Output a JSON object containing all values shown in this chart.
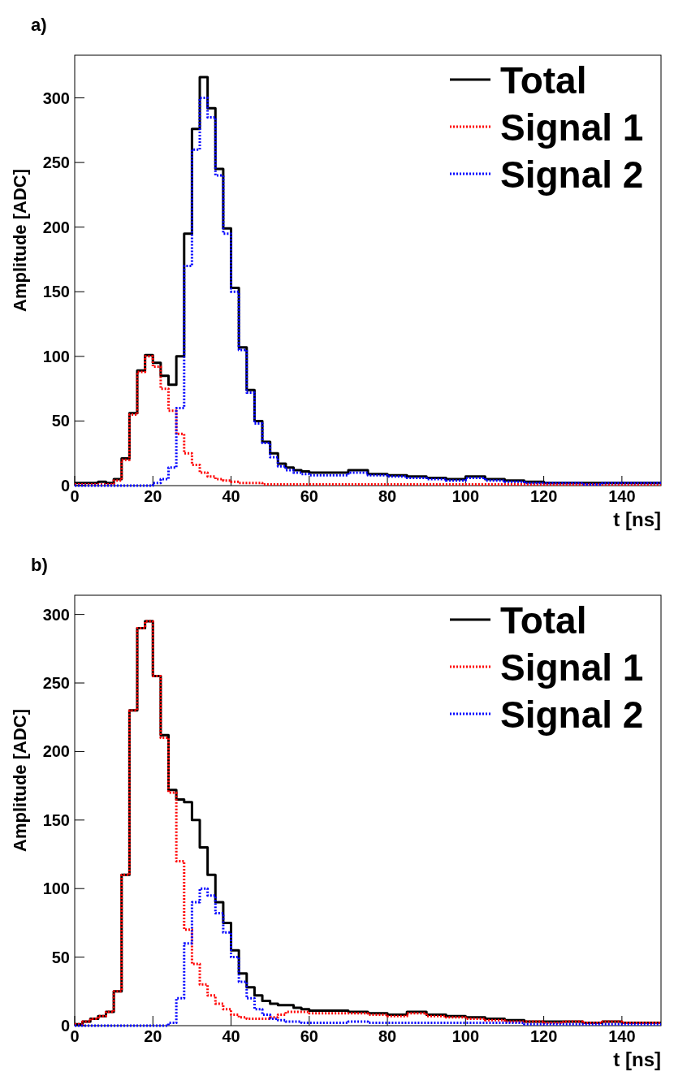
{
  "chart_data": [
    {
      "type": "step",
      "title": "a)",
      "xlabel": "t [ns]",
      "ylabel": "Amplitude [ADC]",
      "x": [
        0,
        2,
        4,
        6,
        8,
        10,
        12,
        14,
        16,
        18,
        20,
        22,
        24,
        26,
        28,
        30,
        32,
        34,
        36,
        38,
        40,
        42,
        44,
        46,
        48,
        50,
        52,
        54,
        56,
        58,
        60,
        65,
        70,
        75,
        80,
        85,
        90,
        95,
        100,
        105,
        110,
        115,
        120,
        125,
        130,
        135,
        140,
        145,
        150
      ],
      "series": [
        {
          "name": "Total",
          "color": "#000000",
          "line_style": "solid",
          "values": [
            2,
            2,
            2,
            3,
            2,
            5,
            21,
            56,
            89,
            101,
            95,
            85,
            78,
            100,
            195,
            276,
            316,
            292,
            245,
            199,
            153,
            107,
            74,
            50,
            34,
            25,
            17,
            14,
            12,
            11,
            10,
            10,
            12,
            9,
            8,
            7,
            6,
            5,
            7,
            5,
            4,
            3,
            2,
            2,
            2,
            2,
            2,
            2,
            2
          ]
        },
        {
          "name": "Signal 1",
          "color": "#ff0000",
          "line_style": "dotted",
          "values": [
            1,
            1,
            1,
            1,
            1,
            4,
            20,
            55,
            88,
            100,
            92,
            75,
            58,
            40,
            25,
            16,
            10,
            7,
            5,
            4,
            3,
            2,
            2,
            2,
            1,
            1,
            1,
            1,
            1,
            1,
            1,
            1,
            1,
            1,
            1,
            1,
            1,
            1,
            1,
            1,
            1,
            1,
            1,
            1,
            1,
            1,
            1,
            1,
            1
          ]
        },
        {
          "name": "Signal 2",
          "color": "#0000ff",
          "line_style": "dotted",
          "values": [
            0,
            0,
            0,
            0,
            0,
            0,
            0,
            0,
            0,
            0,
            2,
            5,
            14,
            60,
            170,
            260,
            300,
            285,
            240,
            195,
            150,
            105,
            72,
            48,
            33,
            22,
            15,
            12,
            10,
            9,
            8,
            8,
            10,
            8,
            7,
            6,
            5,
            4,
            6,
            4,
            3,
            2,
            2,
            2,
            1,
            2,
            2,
            2,
            2
          ]
        }
      ],
      "xlim": [
        0,
        150
      ],
      "xticks": [
        0,
        20,
        40,
        60,
        80,
        100,
        120,
        140
      ],
      "ylim": [
        0,
        333
      ],
      "yticks": [
        0,
        50,
        100,
        150,
        200,
        250,
        300
      ],
      "grid": false,
      "legend": "top right"
    },
    {
      "type": "step",
      "title": "b)",
      "xlabel": "t [ns]",
      "ylabel": "Amplitude [ADC]",
      "x": [
        0,
        2,
        4,
        6,
        8,
        10,
        12,
        14,
        16,
        18,
        20,
        22,
        24,
        26,
        28,
        30,
        32,
        34,
        36,
        38,
        40,
        42,
        44,
        46,
        48,
        50,
        52,
        54,
        56,
        58,
        60,
        65,
        70,
        75,
        80,
        85,
        90,
        95,
        100,
        105,
        110,
        115,
        120,
        125,
        130,
        135,
        140,
        145,
        150
      ],
      "series": [
        {
          "name": "Total",
          "color": "#000000",
          "line_style": "solid",
          "values": [
            1,
            3,
            5,
            7,
            10,
            25,
            110,
            230,
            290,
            295,
            255,
            212,
            172,
            165,
            163,
            150,
            130,
            110,
            90,
            75,
            55,
            38,
            28,
            22,
            18,
            16,
            15,
            15,
            13,
            12,
            11,
            11,
            10,
            9,
            8,
            10,
            8,
            7,
            6,
            5,
            4,
            3,
            3,
            3,
            2,
            3,
            2,
            2,
            2
          ]
        },
        {
          "name": "Signal 1",
          "color": "#ff0000",
          "line_style": "dotted",
          "values": [
            1,
            3,
            5,
            7,
            10,
            25,
            110,
            230,
            290,
            295,
            255,
            210,
            170,
            120,
            70,
            45,
            30,
            22,
            16,
            12,
            8,
            6,
            5,
            5,
            5,
            6,
            8,
            10,
            10,
            10,
            9,
            9,
            9,
            8,
            7,
            9,
            7,
            6,
            5,
            4,
            3,
            3,
            2,
            3,
            2,
            3,
            2,
            2,
            2
          ]
        },
        {
          "name": "Signal 2",
          "color": "#0000ff",
          "line_style": "dotted",
          "values": [
            0,
            0,
            0,
            0,
            0,
            0,
            0,
            0,
            0,
            0,
            0,
            0,
            2,
            20,
            60,
            90,
            100,
            95,
            82,
            68,
            50,
            32,
            20,
            12,
            8,
            5,
            4,
            3,
            3,
            2,
            2,
            2,
            3,
            2,
            2,
            2,
            2,
            2,
            2,
            2,
            2,
            1,
            1,
            1,
            1,
            1,
            1,
            1,
            1
          ]
        }
      ],
      "xlim": [
        0,
        150
      ],
      "xticks": [
        0,
        20,
        40,
        60,
        80,
        100,
        120,
        140
      ],
      "ylim": [
        0,
        314
      ],
      "yticks": [
        0,
        50,
        100,
        150,
        200,
        250,
        300
      ],
      "grid": false,
      "legend": "top right"
    }
  ]
}
